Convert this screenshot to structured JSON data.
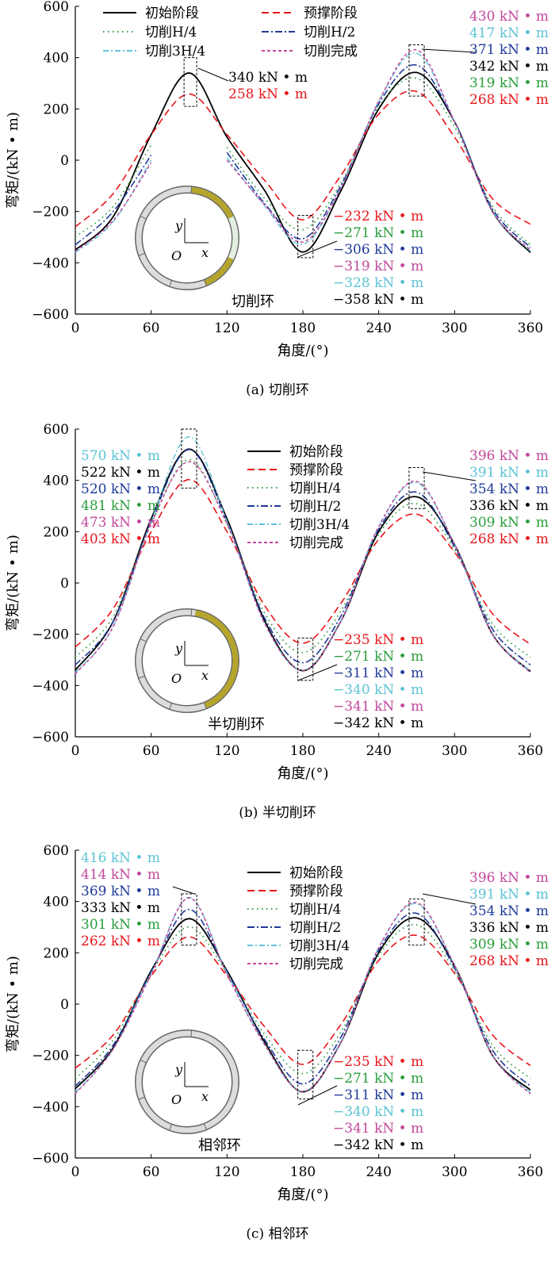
{
  "chart_data": [
    {
      "type": "line",
      "caption": "(a)  切削环",
      "inset_label": "切削环",
      "xlabel": "角度/(°)",
      "ylabel": "弯矩/(kN • m)",
      "xlim": [
        0,
        360
      ],
      "ylim": [
        -600,
        600
      ],
      "xticks": [
        0,
        60,
        120,
        180,
        240,
        300,
        360
      ],
      "yticks": [
        -600,
        -400,
        -200,
        0,
        200,
        400,
        600
      ],
      "legend_placement": "top-left",
      "x": [
        0,
        30,
        60,
        90,
        120,
        150,
        180,
        210,
        240,
        270,
        300,
        330,
        360
      ],
      "series": [
        {
          "name": "初始阶段",
          "color": "#000000",
          "values": [
            -350,
            -220,
            100,
            340,
            90,
            -120,
            -358,
            -120,
            200,
            342,
            150,
            -200,
            -360
          ]
        },
        {
          "name": "预撑阶段",
          "color": "#e8161b",
          "values": [
            -260,
            -130,
            100,
            258,
            100,
            -80,
            -232,
            -60,
            180,
            268,
            90,
            -150,
            -250
          ]
        },
        {
          "name": "切削H/4",
          "color": "#2a9d3c",
          "values": [
            -300,
            -180,
            60,
            null,
            50,
            -150,
            -271,
            -90,
            210,
            319,
            130,
            -180,
            -330
          ]
        },
        {
          "name": "切削H/2",
          "color": "#1f3a9a",
          "values": [
            -330,
            -200,
            20,
            null,
            30,
            -170,
            -306,
            -100,
            220,
            371,
            150,
            -190,
            -340
          ]
        },
        {
          "name": "切削3H/4",
          "color": "#5cc3d5",
          "values": [
            -360,
            -240,
            0,
            null,
            10,
            -180,
            -328,
            -110,
            230,
            417,
            150,
            -200,
            -355
          ]
        },
        {
          "name": "切削完成",
          "color": "#c2489c",
          "values": [
            -355,
            -235,
            -10,
            null,
            0,
            -175,
            -319,
            -110,
            230,
            430,
            150,
            -200,
            -350
          ]
        }
      ],
      "annotations": [
        [
          {
            "text": "340 kN • m",
            "color": "#000000"
          },
          {
            "text": "258 kN • m",
            "color": "#e8161b"
          }
        ],
        [
          {
            "text": "430 kN • m",
            "color": "#c2489c"
          },
          {
            "text": "417 kN • m",
            "color": "#5cc3d5"
          },
          {
            "text": "371 kN • m",
            "color": "#1f3a9a"
          },
          {
            "text": "342 kN • m",
            "color": "#000000"
          },
          {
            "text": "319 kN • m",
            "color": "#2a9d3c"
          },
          {
            "text": "268 kN • m",
            "color": "#e8161b"
          }
        ],
        [
          {
            "text": "−232 kN • m",
            "color": "#e8161b"
          },
          {
            "text": "−271 kN • m",
            "color": "#2a9d3c"
          },
          {
            "text": "−306 kN • m",
            "color": "#1f3a9a"
          },
          {
            "text": "−319 kN • m",
            "color": "#c2489c"
          },
          {
            "text": "−328 kN • m",
            "color": "#5cc3d5"
          },
          {
            "text": "−358 kN • m",
            "color": "#000000"
          }
        ]
      ]
    },
    {
      "type": "line",
      "caption": "(b)  半切削环",
      "inset_label": "半切削环",
      "xlabel": "角度/(°)",
      "ylabel": "弯矩/(kN • m)",
      "xlim": [
        0,
        360
      ],
      "ylim": [
        -600,
        600
      ],
      "xticks": [
        0,
        60,
        120,
        180,
        240,
        300,
        360
      ],
      "yticks": [
        -600,
        -400,
        -200,
        0,
        200,
        400,
        600
      ],
      "legend_placement": "top-center",
      "x": [
        0,
        30,
        60,
        90,
        120,
        150,
        180,
        210,
        240,
        270,
        300,
        330,
        360
      ],
      "series": [
        {
          "name": "初始阶段",
          "color": "#000000",
          "values": [
            -340,
            -150,
            250,
            522,
            250,
            -150,
            -342,
            -150,
            200,
            336,
            150,
            -200,
            -345
          ]
        },
        {
          "name": "预撑阶段",
          "color": "#e8161b",
          "values": [
            -250,
            -100,
            200,
            403,
            200,
            -90,
            -235,
            -80,
            170,
            268,
            120,
            -120,
            -240
          ]
        },
        {
          "name": "切削H/4",
          "color": "#2a9d3c",
          "values": [
            -290,
            -130,
            230,
            481,
            230,
            -120,
            -271,
            -110,
            190,
            309,
            130,
            -160,
            -290
          ]
        },
        {
          "name": "切削H/2",
          "color": "#1f3a9a",
          "values": [
            -320,
            -150,
            240,
            520,
            240,
            -140,
            -311,
            -130,
            210,
            354,
            140,
            -180,
            -320
          ]
        },
        {
          "name": "切削3H/4",
          "color": "#5cc3d5",
          "values": [
            -350,
            -170,
            240,
            570,
            240,
            -160,
            -340,
            -150,
            220,
            391,
            150,
            -200,
            -345
          ]
        },
        {
          "name": "切削完成",
          "color": "#c2489c",
          "values": [
            -355,
            -170,
            230,
            473,
            230,
            -160,
            -341,
            -150,
            220,
            396,
            150,
            -200,
            -350
          ]
        }
      ],
      "annotations": [
        [
          {
            "text": "570 kN • m",
            "color": "#5cc3d5"
          },
          {
            "text": "522 kN • m",
            "color": "#000000"
          },
          {
            "text": "520 kN • m",
            "color": "#1f3a9a"
          },
          {
            "text": "481 kN • m",
            "color": "#2a9d3c"
          },
          {
            "text": "473 kN • m",
            "color": "#c2489c"
          },
          {
            "text": "403 kN • m",
            "color": "#e8161b"
          }
        ],
        [
          {
            "text": "396 kN • m",
            "color": "#c2489c"
          },
          {
            "text": "391 kN • m",
            "color": "#5cc3d5"
          },
          {
            "text": "354 kN • m",
            "color": "#1f3a9a"
          },
          {
            "text": "336 kN • m",
            "color": "#000000"
          },
          {
            "text": "309 kN • m",
            "color": "#2a9d3c"
          },
          {
            "text": "268 kN • m",
            "color": "#e8161b"
          }
        ],
        [
          {
            "text": "−235 kN • m",
            "color": "#e8161b"
          },
          {
            "text": "−271 kN • m",
            "color": "#2a9d3c"
          },
          {
            "text": "−311 kN • m",
            "color": "#1f3a9a"
          },
          {
            "text": "−340 kN • m",
            "color": "#5cc3d5"
          },
          {
            "text": "−341 kN • m",
            "color": "#c2489c"
          },
          {
            "text": "−342 kN • m",
            "color": "#000000"
          }
        ]
      ]
    },
    {
      "type": "line",
      "caption": "(c)  相邻环",
      "inset_label": "相邻环",
      "xlabel": "角度/(°)",
      "ylabel": "弯矩/(kN • m)",
      "xlim": [
        0,
        360
      ],
      "ylim": [
        -600,
        600
      ],
      "xticks": [
        0,
        60,
        120,
        180,
        240,
        300,
        360
      ],
      "yticks": [
        -600,
        -400,
        -200,
        0,
        200,
        400,
        600
      ],
      "legend_placement": "top-center",
      "x": [
        0,
        30,
        60,
        90,
        120,
        150,
        180,
        210,
        240,
        270,
        300,
        330,
        360
      ],
      "series": [
        {
          "name": "初始阶段",
          "color": "#000000",
          "values": [
            -330,
            -170,
            130,
            333,
            130,
            -150,
            -342,
            -150,
            200,
            336,
            150,
            -200,
            -335
          ]
        },
        {
          "name": "预撑阶段",
          "color": "#e8161b",
          "values": [
            -250,
            -120,
            110,
            262,
            110,
            -90,
            -235,
            -80,
            170,
            268,
            120,
            -120,
            -240
          ]
        },
        {
          "name": "切削H/4",
          "color": "#2a9d3c",
          "values": [
            -290,
            -140,
            120,
            301,
            120,
            -120,
            -271,
            -110,
            190,
            309,
            130,
            -160,
            -290
          ]
        },
        {
          "name": "切削H/2",
          "color": "#1f3a9a",
          "values": [
            -320,
            -160,
            125,
            369,
            125,
            -140,
            -311,
            -130,
            210,
            354,
            140,
            -180,
            -320
          ]
        },
        {
          "name": "切削3H/4",
          "color": "#5cc3d5",
          "values": [
            -345,
            -175,
            120,
            416,
            120,
            -160,
            -340,
            -150,
            220,
            391,
            150,
            -200,
            -345
          ]
        },
        {
          "name": "切削完成",
          "color": "#c2489c",
          "values": [
            -350,
            -175,
            115,
            414,
            115,
            -160,
            -341,
            -150,
            220,
            396,
            150,
            -200,
            -350
          ]
        }
      ],
      "annotations": [
        [
          {
            "text": "416 kN • m",
            "color": "#5cc3d5"
          },
          {
            "text": "414 kN • m",
            "color": "#c2489c"
          },
          {
            "text": "369 kN • m",
            "color": "#1f3a9a"
          },
          {
            "text": "333 kN • m",
            "color": "#000000"
          },
          {
            "text": "301 kN • m",
            "color": "#2a9d3c"
          },
          {
            "text": "262 kN • m",
            "color": "#e8161b"
          }
        ],
        [
          {
            "text": "396 kN • m",
            "color": "#c2489c"
          },
          {
            "text": "391 kN • m",
            "color": "#5cc3d5"
          },
          {
            "text": "354 kN • m",
            "color": "#1f3a9a"
          },
          {
            "text": "336 kN • m",
            "color": "#000000"
          },
          {
            "text": "309 kN • m",
            "color": "#2a9d3c"
          },
          {
            "text": "268 kN • m",
            "color": "#e8161b"
          }
        ],
        [
          {
            "text": "−235 kN • m",
            "color": "#e8161b"
          },
          {
            "text": "−271 kN • m",
            "color": "#2a9d3c"
          },
          {
            "text": "−311 kN • m",
            "color": "#1f3a9a"
          },
          {
            "text": "−340 kN • m",
            "color": "#5cc3d5"
          },
          {
            "text": "−341 kN • m",
            "color": "#c2489c"
          },
          {
            "text": "−342 kN • m",
            "color": "#000000"
          }
        ]
      ]
    }
  ],
  "inset_axes": {
    "y": "y",
    "x": "x",
    "origin": "O"
  }
}
